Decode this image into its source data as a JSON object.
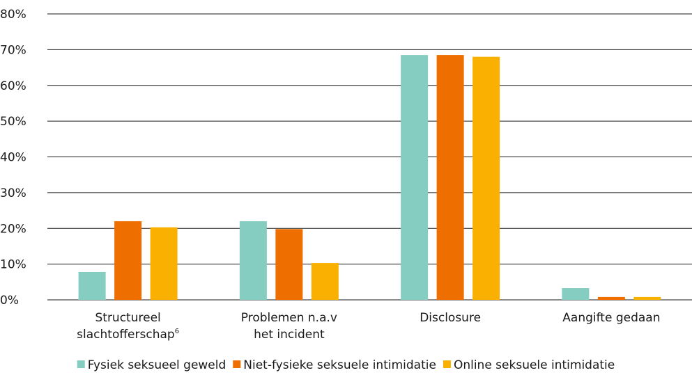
{
  "chart_data": {
    "type": "bar",
    "title": "",
    "xlabel": "",
    "ylabel": "",
    "ylim": [
      0,
      80
    ],
    "y_ticks": [
      "0%",
      "10%",
      "20%",
      "30%",
      "40%",
      "50%",
      "60%",
      "70%",
      "80%"
    ],
    "grid": "horizontal",
    "legend_position": "bottom",
    "categories": [
      {
        "lines": [
          "Structureel",
          "slachtofferschap"
        ],
        "superscript": "6"
      },
      {
        "lines": [
          "Problemen n.a.v",
          "het incident"
        ],
        "superscript": ""
      },
      {
        "lines": [
          "Disclosure"
        ],
        "superscript": ""
      },
      {
        "lines": [
          "Aangifte gedaan"
        ],
        "superscript": ""
      }
    ],
    "series": [
      {
        "name": "Fysiek seksueel geweld",
        "color": "#85ccc1",
        "values": [
          7.8,
          22.0,
          68.5,
          3.3
        ]
      },
      {
        "name": "Niet-fysieke seksuele intimidatie",
        "color": "#ee6e00",
        "values": [
          22.0,
          19.8,
          68.5,
          0.8
        ]
      },
      {
        "name": "Online seksuele intimidatie",
        "color": "#f9b000",
        "values": [
          20.3,
          10.3,
          68.0,
          0.8
        ]
      }
    ]
  }
}
